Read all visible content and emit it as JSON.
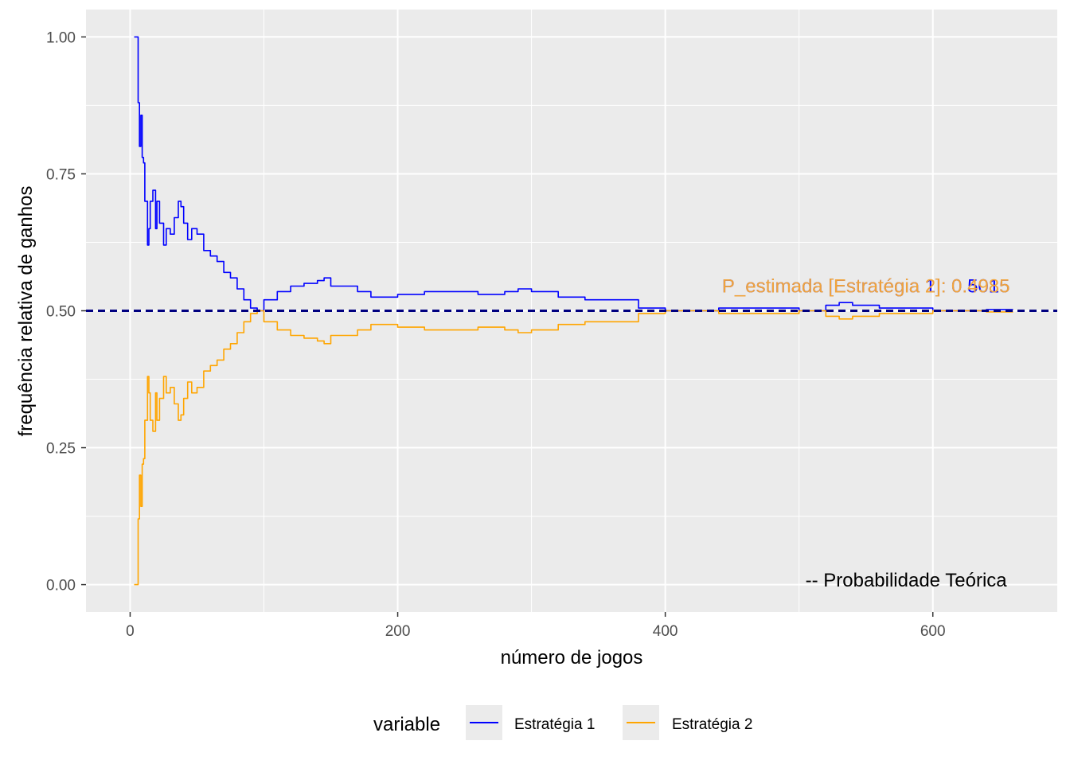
{
  "chart_data": {
    "type": "line",
    "title": "",
    "xlabel": "número de jogos",
    "ylabel": "frequência relativa de ganhos",
    "xlim": [
      -33,
      693
    ],
    "ylim": [
      -0.05,
      1.05
    ],
    "xticks": [
      0,
      200,
      400,
      600
    ],
    "xtick_labels": [
      "0",
      "200",
      "400",
      "600"
    ],
    "yticks": [
      0.0,
      0.25,
      0.5,
      0.75,
      1.0
    ],
    "ytick_labels": [
      "0.00",
      "0.25",
      "0.50",
      "0.75",
      "1.00"
    ],
    "grid": true,
    "legend": {
      "title": "variable",
      "position": "bottom",
      "entries": [
        {
          "label": "Estratégia 1",
          "color": "#0000ff"
        },
        {
          "label": "Estratégia 2",
          "color": "#ffa500"
        }
      ]
    },
    "reference_line": {
      "y": 0.5,
      "style": "dashed",
      "color": "#000080"
    },
    "annotations": [
      {
        "text": "P_estimada [Estratégia 1]: 0.5015",
        "x": 550,
        "y": 0.545,
        "color": "#0000ff"
      },
      {
        "text": "P_estimada [Estratégia 2]: 0.4985",
        "x": 550,
        "y": 0.545,
        "color": "#f2a43a"
      },
      {
        "text": "-- Probabilidade Teórica",
        "x": 580,
        "y": 0.008,
        "color": "#000000"
      }
    ],
    "series": [
      {
        "name": "Estratégia 1",
        "color": "#0000ff",
        "x": [
          3,
          4,
          5,
          6,
          7,
          8,
          9,
          10,
          11,
          12,
          13,
          14,
          15,
          17,
          19,
          20,
          22,
          25,
          27,
          30,
          33,
          36,
          38,
          40,
          43,
          46,
          50,
          55,
          60,
          65,
          70,
          75,
          80,
          85,
          90,
          95,
          100,
          110,
          120,
          130,
          140,
          145,
          150,
          160,
          170,
          180,
          190,
          200,
          220,
          240,
          260,
          280,
          290,
          300,
          320,
          340,
          360,
          380,
          400,
          420,
          440,
          460,
          480,
          500,
          520,
          530,
          540,
          560,
          580,
          600,
          620,
          640,
          660
        ],
        "y": [
          1.0,
          1.0,
          1.0,
          0.88,
          0.8,
          0.857,
          0.78,
          0.77,
          0.7,
          0.7,
          0.62,
          0.65,
          0.7,
          0.72,
          0.65,
          0.7,
          0.66,
          0.62,
          0.65,
          0.64,
          0.67,
          0.7,
          0.69,
          0.66,
          0.63,
          0.65,
          0.64,
          0.61,
          0.6,
          0.59,
          0.57,
          0.56,
          0.54,
          0.52,
          0.505,
          0.5,
          0.52,
          0.535,
          0.545,
          0.55,
          0.555,
          0.56,
          0.545,
          0.545,
          0.535,
          0.525,
          0.525,
          0.53,
          0.535,
          0.535,
          0.53,
          0.535,
          0.54,
          0.535,
          0.525,
          0.52,
          0.52,
          0.505,
          0.5,
          0.5,
          0.505,
          0.505,
          0.505,
          0.5,
          0.51,
          0.515,
          0.51,
          0.505,
          0.505,
          0.5,
          0.5,
          0.502,
          0.502
        ]
      },
      {
        "name": "Estratégia 2",
        "color": "#ffa500",
        "x": [
          3,
          4,
          5,
          6,
          7,
          8,
          9,
          10,
          11,
          12,
          13,
          14,
          15,
          17,
          19,
          20,
          22,
          25,
          27,
          30,
          33,
          36,
          38,
          40,
          43,
          46,
          50,
          55,
          60,
          65,
          70,
          75,
          80,
          85,
          90,
          95,
          100,
          110,
          120,
          130,
          140,
          145,
          150,
          160,
          170,
          180,
          190,
          200,
          220,
          240,
          260,
          280,
          290,
          300,
          320,
          340,
          360,
          380,
          400,
          420,
          440,
          460,
          480,
          500,
          520,
          530,
          540,
          560,
          580,
          600,
          620,
          640,
          660
        ],
        "y": [
          0.0,
          0.0,
          0.0,
          0.12,
          0.2,
          0.143,
          0.22,
          0.23,
          0.3,
          0.3,
          0.38,
          0.35,
          0.3,
          0.28,
          0.35,
          0.3,
          0.34,
          0.38,
          0.35,
          0.36,
          0.33,
          0.3,
          0.31,
          0.34,
          0.37,
          0.35,
          0.36,
          0.39,
          0.4,
          0.41,
          0.43,
          0.44,
          0.46,
          0.48,
          0.495,
          0.5,
          0.48,
          0.465,
          0.455,
          0.45,
          0.445,
          0.44,
          0.455,
          0.455,
          0.465,
          0.475,
          0.475,
          0.47,
          0.465,
          0.465,
          0.47,
          0.465,
          0.46,
          0.465,
          0.475,
          0.48,
          0.48,
          0.495,
          0.5,
          0.5,
          0.495,
          0.495,
          0.495,
          0.5,
          0.49,
          0.485,
          0.49,
          0.495,
          0.495,
          0.5,
          0.5,
          0.498,
          0.498
        ]
      }
    ]
  }
}
